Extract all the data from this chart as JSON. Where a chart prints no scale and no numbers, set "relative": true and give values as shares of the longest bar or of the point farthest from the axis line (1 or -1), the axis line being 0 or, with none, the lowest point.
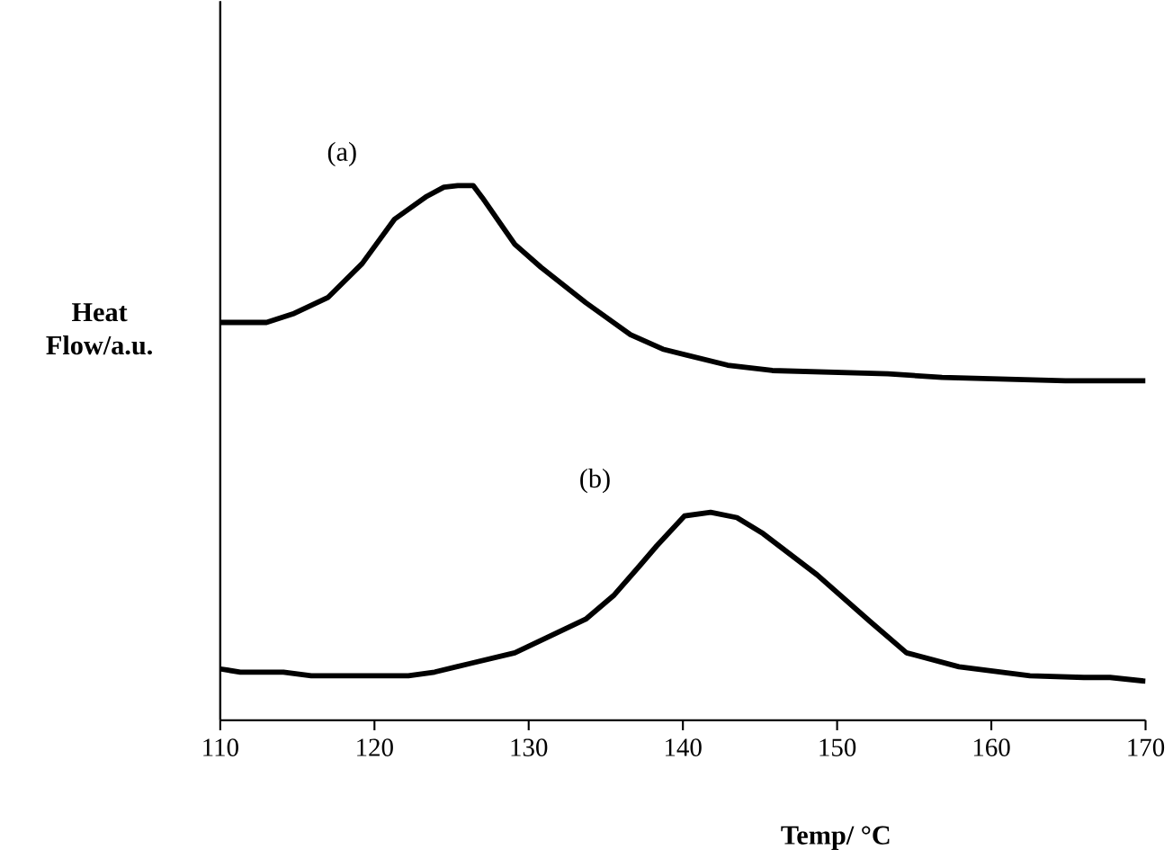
{
  "chart_data": {
    "type": "line",
    "relative": true,
    "xlabel": "Temp/ °C",
    "ylabel": "Heat Flow/a.u.",
    "xlim": [
      110,
      170
    ],
    "xticks": [
      110,
      120,
      130,
      140,
      150,
      160,
      170
    ],
    "tick_labels": "x",
    "marker": "none",
    "line_style": "solid",
    "annotations": [
      "(a)",
      "(b)"
    ],
    "series": [
      {
        "color": "#000000",
        "x": [
          110.0,
          113.0,
          114.8,
          117.0,
          119.2,
          121.3,
          123.4,
          124.5,
          125.4,
          126.4,
          127.0,
          129.1,
          130.8,
          133.7,
          136.6,
          138.7,
          142.9,
          145.8,
          153.3,
          156.8,
          164.8,
          170.0
        ],
        "values": [
          0.744,
          0.744,
          0.761,
          0.791,
          0.854,
          0.937,
          0.98,
          0.997,
          1.0,
          1.0,
          0.977,
          0.89,
          0.847,
          0.781,
          0.721,
          0.694,
          0.664,
          0.654,
          0.648,
          0.641,
          0.635,
          0.635
        ]
      },
      {
        "color": "#000000",
        "x": [
          110.0,
          111.3,
          114.1,
          115.9,
          122.2,
          123.9,
          126.2,
          129.1,
          133.7,
          135.5,
          137.2,
          138.3,
          140.1,
          141.8,
          143.5,
          145.2,
          148.7,
          152.2,
          154.5,
          157.9,
          162.5,
          166.0,
          167.7,
          170.0
        ],
        "values": [
          0.096,
          0.09,
          0.09,
          0.083,
          0.083,
          0.09,
          0.106,
          0.126,
          0.189,
          0.233,
          0.289,
          0.326,
          0.382,
          0.389,
          0.379,
          0.349,
          0.272,
          0.183,
          0.126,
          0.1,
          0.083,
          0.08,
          0.08,
          0.073
        ]
      }
    ]
  }
}
